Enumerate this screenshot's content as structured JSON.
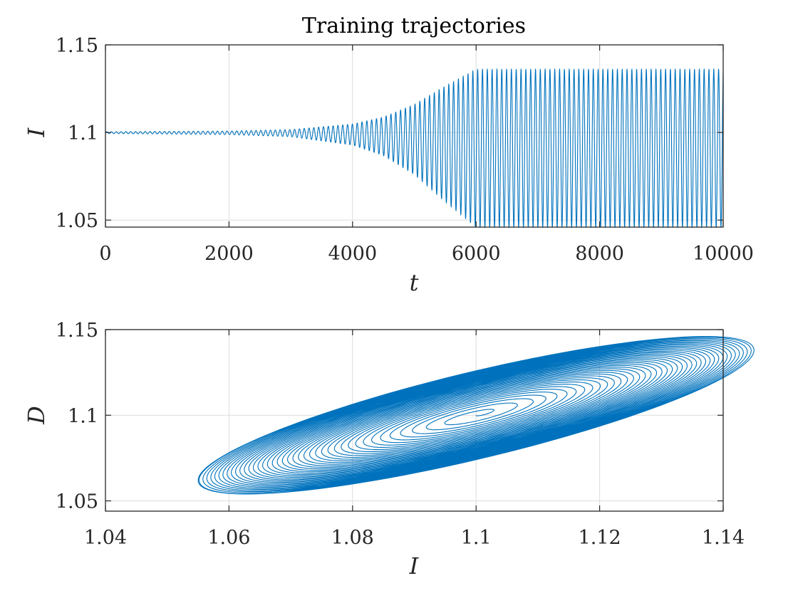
{
  "chart_data": [
    {
      "type": "line",
      "title": "Training trajectories",
      "xlabel": "t",
      "ylabel": "I",
      "xlim": [
        0,
        10000
      ],
      "ylim": [
        1.046,
        1.15
      ],
      "xticks": [
        0,
        2000,
        4000,
        6000,
        8000,
        10000
      ],
      "xtick_labels": [
        "0",
        "2000",
        "4000",
        "6000",
        "8000",
        "10000"
      ],
      "yticks": [
        1.05,
        1.1,
        1.15
      ],
      "ytick_labels": [
        "1.05",
        "1.1",
        "1.15"
      ],
      "grid": true,
      "color": "#0072BD",
      "series": [
        {
          "equilibrium": 1.1,
          "oscillation_period": 78,
          "envelope": {
            "t": [
              0,
              2000,
              3000,
              3500,
              4000,
              4500,
              5000,
              5500,
              6000,
              6500,
              7000,
              10000
            ],
            "amplitude": [
              0.0005,
              0.001,
              0.002,
              0.004,
              0.006,
              0.011,
              0.02,
              0.033,
              0.045,
              0.053,
              0.054,
              0.054
            ]
          },
          "max": 1.136,
          "min": 1.046
        }
      ]
    },
    {
      "type": "line",
      "title": "",
      "xlabel": "I",
      "ylabel": "D",
      "xlim": [
        1.04,
        1.14
      ],
      "ylim": [
        1.044,
        1.15
      ],
      "xticks": [
        1.04,
        1.06,
        1.08,
        1.1,
        1.12,
        1.14
      ],
      "xtick_labels": [
        "1.04",
        "1.06",
        "1.08",
        "1.1",
        "1.12",
        "1.14"
      ],
      "yticks": [
        1.05,
        1.1,
        1.15
      ],
      "ytick_labels": [
        "1.05",
        "1.1",
        "1.15"
      ],
      "grid": true,
      "color": "#0072BD",
      "series": [
        {
          "center": [
            1.1,
            1.1
          ],
          "outer_orbit_I_range": [
            1.046,
            1.136
          ],
          "outer_orbit_D_range": [
            1.044,
            1.136
          ],
          "spiral_turns": 60
        }
      ]
    }
  ]
}
